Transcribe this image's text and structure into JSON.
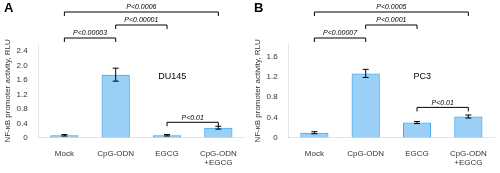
{
  "chart_data": [
    {
      "type": "bar",
      "title": "DU145",
      "panel_label": "A",
      "categories": [
        "Mock",
        "CpG-ODN",
        "EGCG",
        "CpG-ODN\n+EGCG"
      ],
      "values": [
        0.07,
        1.75,
        0.07,
        0.28
      ],
      "errors": [
        0.02,
        0.18,
        0.02,
        0.04
      ],
      "ylabel": "NF-κB promoter activity, RLU",
      "ylim": [
        0,
        2.6
      ],
      "yticks": [
        0,
        0.4,
        0.8,
        1.2,
        1.6,
        {
          "value": 2,
          "label": "2.0"
        },
        2.4
      ],
      "grid": false,
      "annotations": [
        {
          "from": "Mock",
          "to": "CpG-ODN",
          "label": "P<0.00003"
        },
        {
          "from": "CpG-ODN",
          "to": "EGCG",
          "label": "P<0.00001"
        },
        {
          "from": "Mock",
          "to": "CpG-ODN\n+EGCG",
          "label": "P<0.0006"
        },
        {
          "from": "EGCG",
          "to": "CpG-ODN\n+EGCG",
          "y": 0.43,
          "label": "P<0.01"
        }
      ]
    },
    {
      "type": "bar",
      "title": "PC3",
      "panel_label": "B",
      "categories": [
        "Mock",
        "CpG-ODN",
        "EGCG",
        "CpG-ODN\n+EGCG"
      ],
      "values": [
        0.1,
        1.27,
        0.3,
        0.42
      ],
      "errors": [
        0.02,
        0.08,
        0.02,
        0.03
      ],
      "ylabel": "NF-κB promoter activity, RLU",
      "ylim": [
        0,
        1.85
      ],
      "yticks": [
        0,
        0.4,
        0.8,
        1.2,
        1.6
      ],
      "grid": false,
      "annotations": [
        {
          "from": "Mock",
          "to": "CpG-ODN",
          "label": "P<0.00007"
        },
        {
          "from": "CpG-ODN",
          "to": "EGCG",
          "label": "P<0.0001"
        },
        {
          "from": "Mock",
          "to": "CpG-ODN\n+EGCG",
          "label": "P<0.0005"
        },
        {
          "from": "EGCG",
          "to": "CpG-ODN\n+EGCG",
          "y": 0.6,
          "label": "P<0.01"
        }
      ]
    }
  ]
}
